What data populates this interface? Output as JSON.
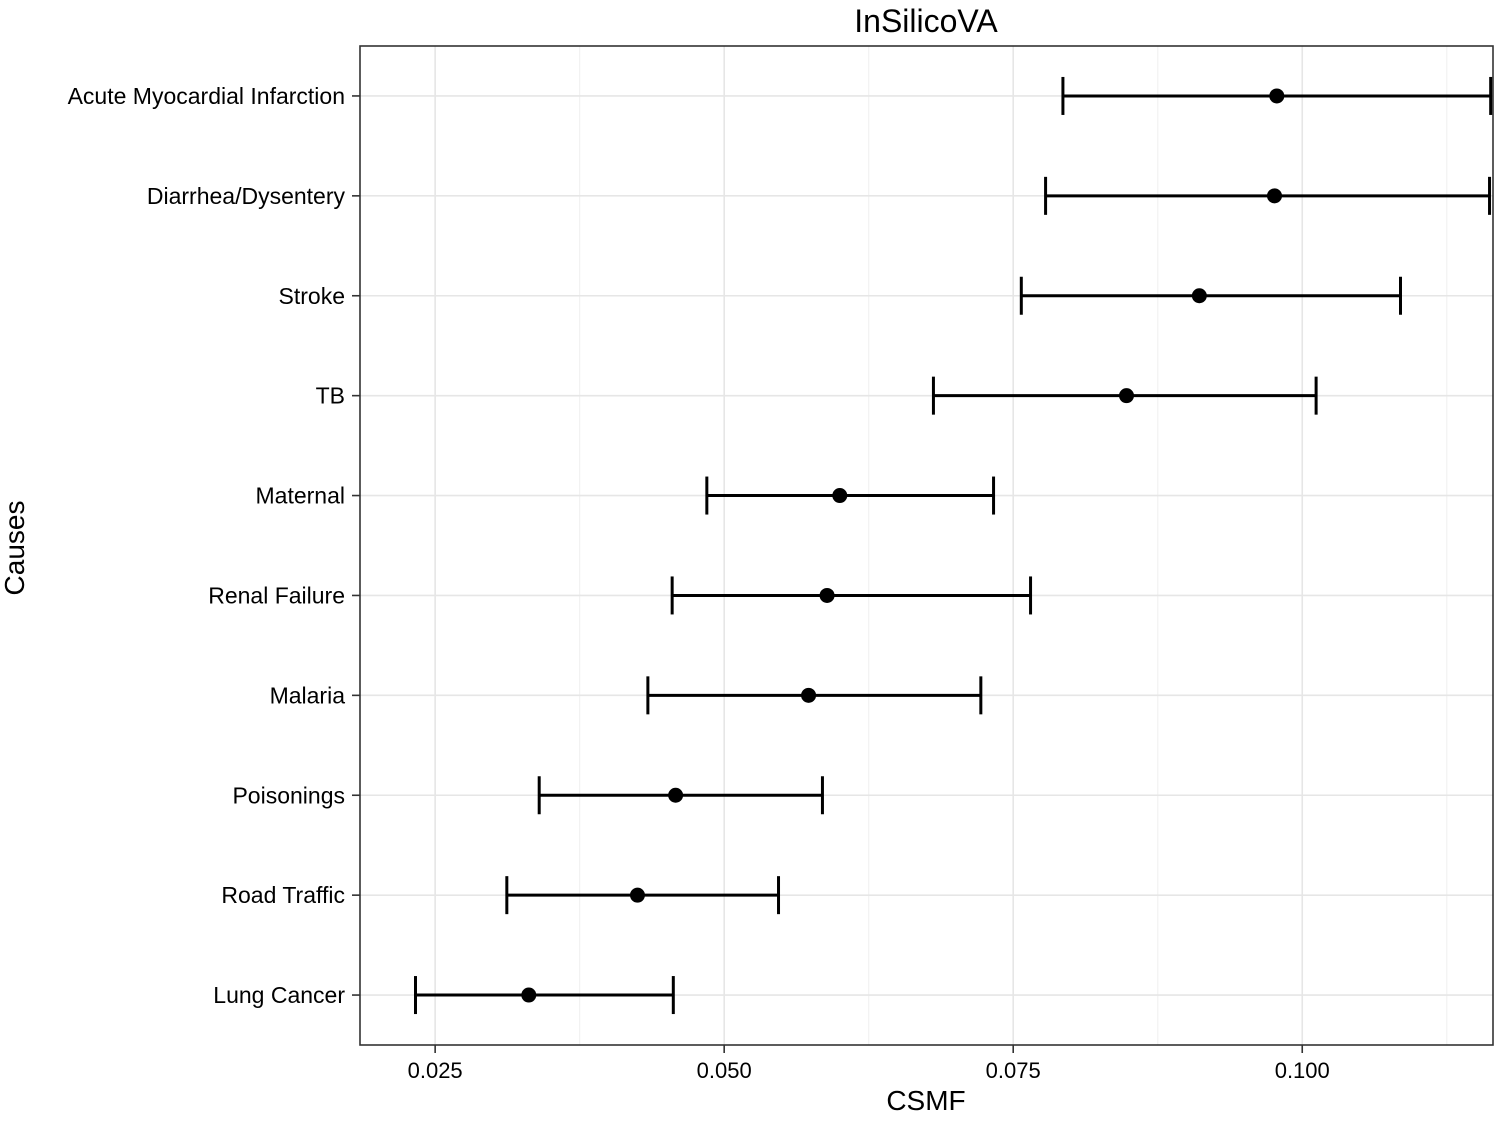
{
  "chart_data": {
    "type": "scatter",
    "title": "InSilicoVA",
    "xlabel": "CSMF",
    "ylabel": "Causes",
    "xlim": [
      0.0185,
      0.1165
    ],
    "x_ticks": [
      0.025,
      0.05,
      0.075,
      0.1
    ],
    "x_tick_labels": [
      "0.025",
      "0.050",
      "0.075",
      "0.100"
    ],
    "grid": true,
    "categories": [
      "Acute Myocardial Infarction",
      "Diarrhea/Dysentery",
      "Stroke",
      "TB",
      "Maternal",
      "Renal Failure",
      "Malaria",
      "Poisonings",
      "Road Traffic",
      "Lung Cancer"
    ],
    "series": [
      {
        "values": [
          0.0978,
          0.0976,
          0.0911,
          0.0848,
          0.06,
          0.0589,
          0.0573,
          0.0458,
          0.0425,
          0.0331
        ],
        "lower": [
          0.0793,
          0.0778,
          0.0757,
          0.0681,
          0.0485,
          0.0455,
          0.0434,
          0.034,
          0.0312,
          0.0233
        ],
        "upper": [
          0.1163,
          0.1162,
          0.1085,
          0.1012,
          0.0733,
          0.0765,
          0.0722,
          0.0585,
          0.0547,
          0.0456
        ]
      }
    ],
    "colors": {
      "marker": "#000000",
      "grid_major": "#e6e6e6",
      "grid_minor": "#f2f2f2",
      "frame": "#333333"
    }
  }
}
